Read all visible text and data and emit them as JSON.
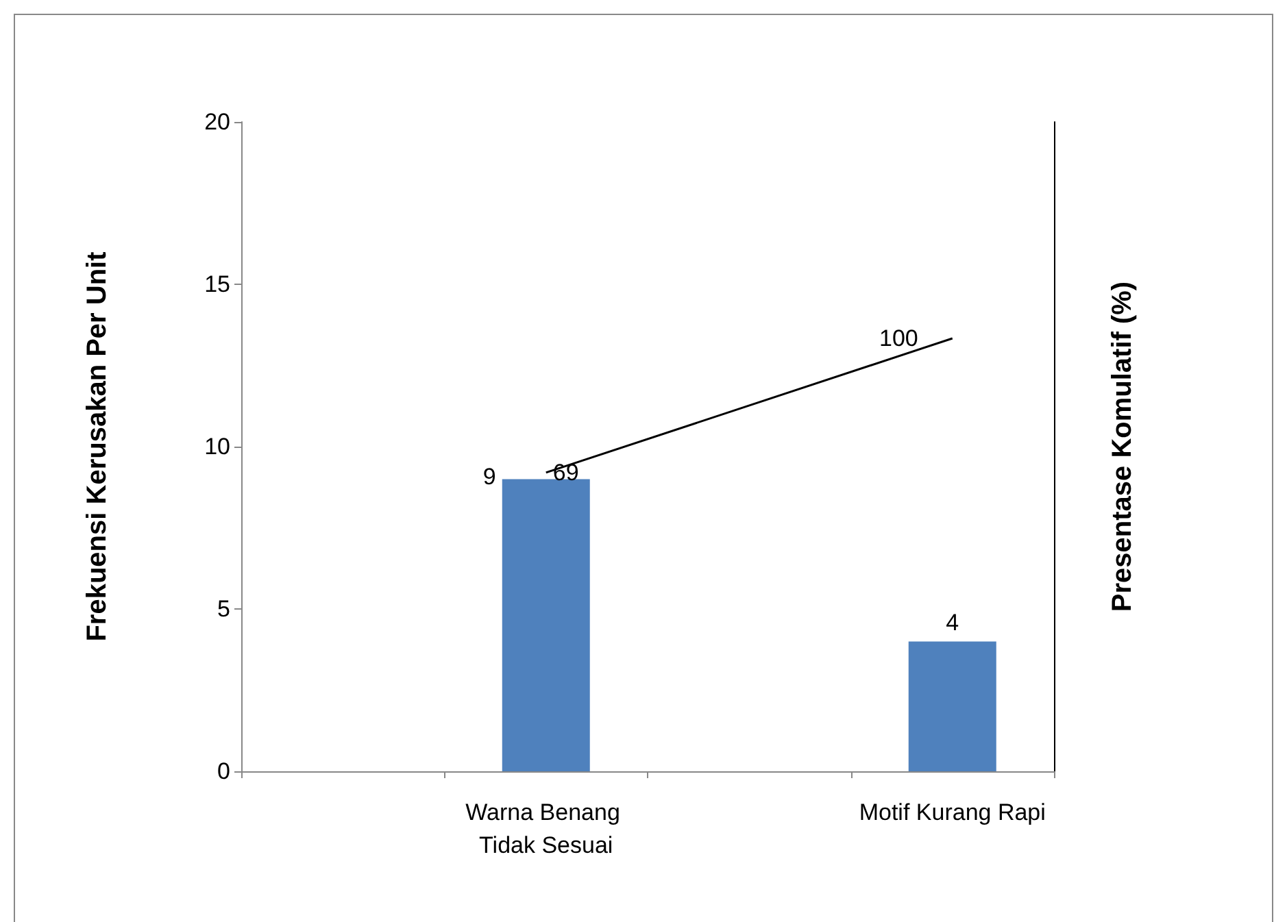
{
  "chart_data": {
    "type": "bar",
    "categories": [
      null,
      "Warna Benang Tidak Sesuai",
      null,
      "Motif Kurang Rapi"
    ],
    "ylabel": "Frekuensi Kerusakan Per Unit",
    "y2label": "Presentase Komulatif (%)",
    "ylim": [
      0,
      20
    ],
    "yticks": [
      0,
      5,
      10,
      15,
      20
    ],
    "y2lim": [
      0,
      150
    ],
    "tick_labels": "xy",
    "series": [
      {
        "color": "#4f81bd",
        "values": [
          null,
          9,
          null,
          4
        ]
      },
      {
        "type": "line",
        "axis": "y2",
        "color": "#000000",
        "values": [
          null,
          69,
          null,
          100
        ]
      }
    ],
    "data_labels": true,
    "grid": false,
    "marker": "none"
  }
}
